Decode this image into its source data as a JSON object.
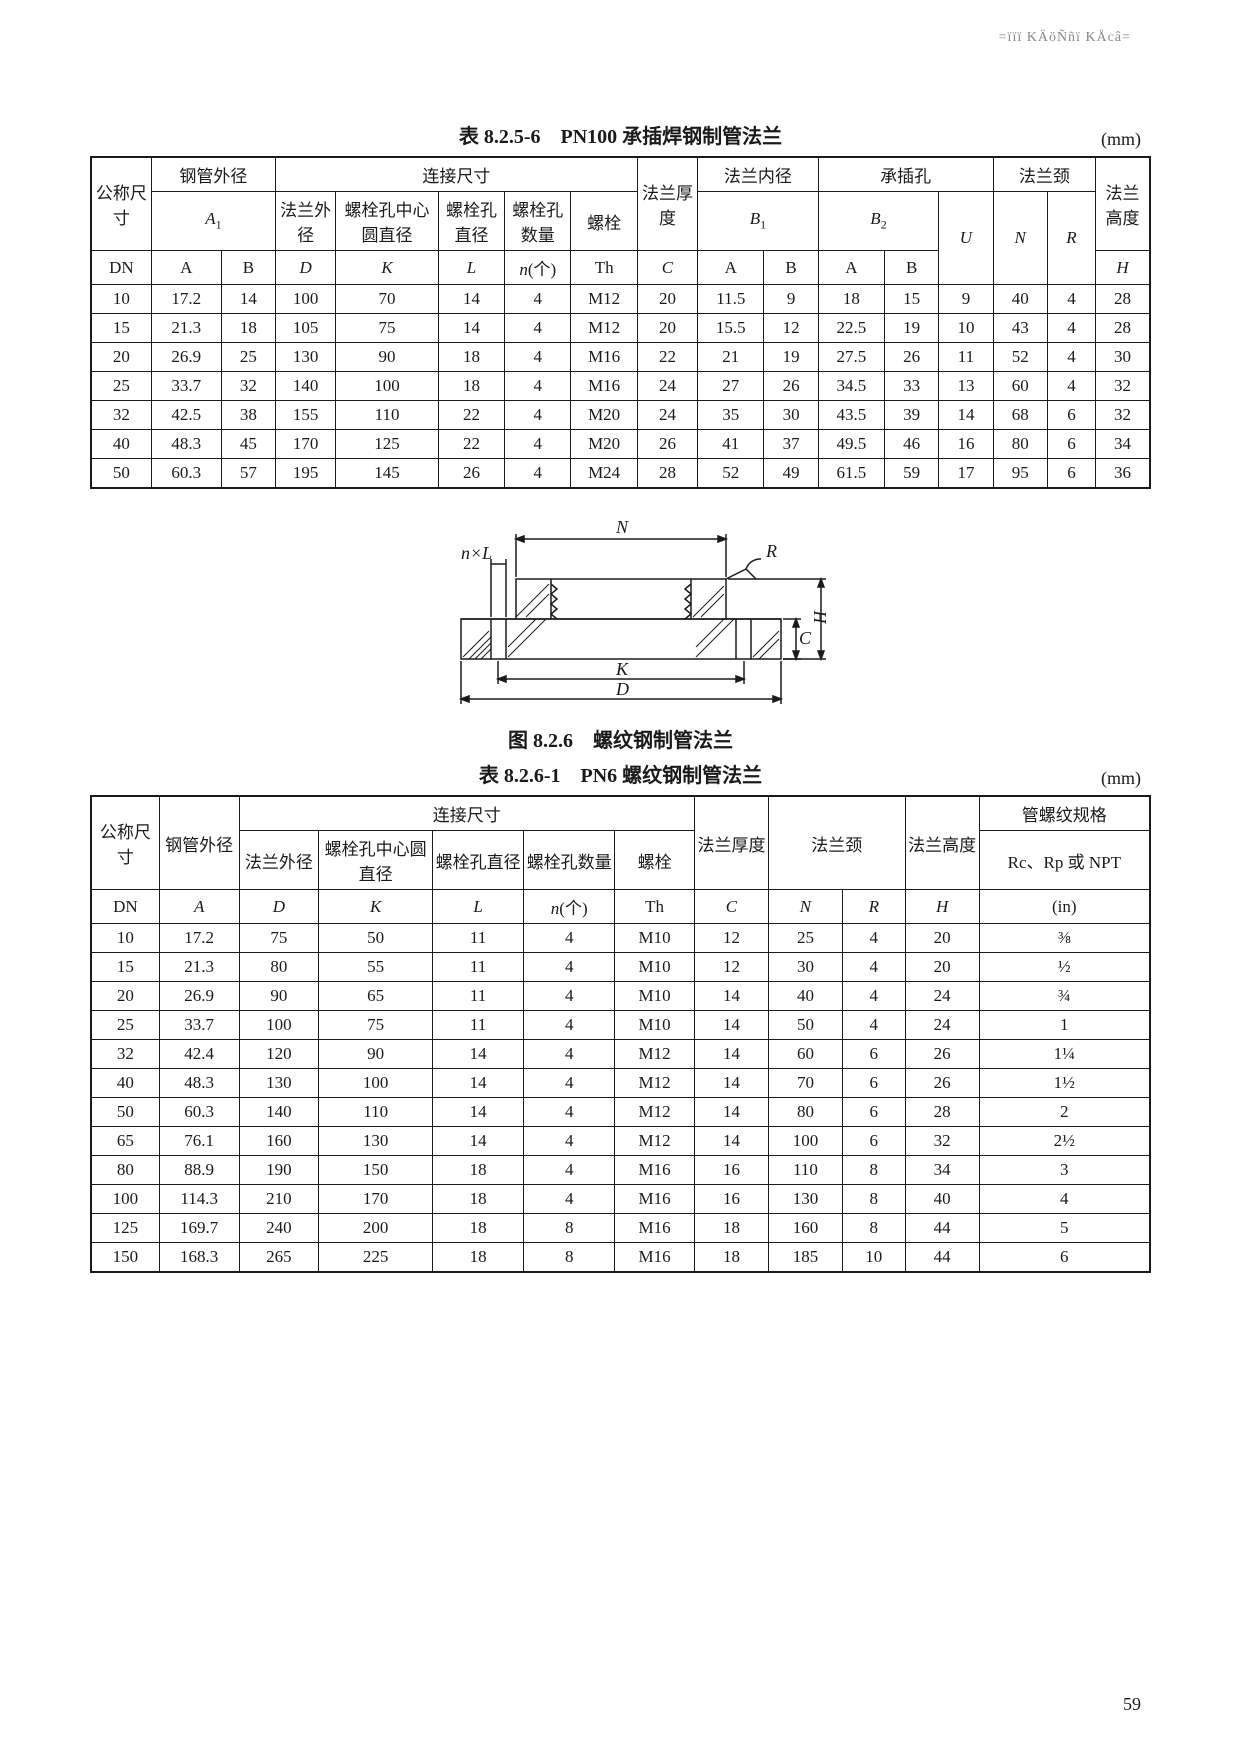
{
  "header_watermark": "=ïïï KÄöÑñï KÅcâ=",
  "table1": {
    "title": "表 8.2.5-6　PN100 承插焊钢制管法兰",
    "unit": "(mm)",
    "headers": {
      "g1": "公称尺寸",
      "g2": "钢管外径",
      "g2s": "A₁",
      "g3": "连接尺寸",
      "g4": "法兰厚度",
      "g5": "法兰内径",
      "g5s": "B₁",
      "g6": "承插孔",
      "g6s": "B₂",
      "g7": "法兰颈",
      "g8": "法兰高度",
      "c_dn": "DN",
      "c_a": "A",
      "c_b": "B",
      "c3a": "法兰外径",
      "c3a2": "D",
      "c3b": "螺栓孔中心圆直径",
      "c3b2": "K",
      "c3c": "螺栓孔直径",
      "c3c2": "L",
      "c3d": "螺栓孔数量",
      "c3d2": "n(个)",
      "c3e": "螺栓",
      "c3e2": "Th",
      "c4": "C",
      "c6u": "U",
      "c7n": "N",
      "c7r": "R",
      "c8h": "H"
    },
    "rows": [
      [
        "10",
        "17.2",
        "14",
        "100",
        "70",
        "14",
        "4",
        "M12",
        "20",
        "11.5",
        "9",
        "18",
        "15",
        "9",
        "40",
        "4",
        "28"
      ],
      [
        "15",
        "21.3",
        "18",
        "105",
        "75",
        "14",
        "4",
        "M12",
        "20",
        "15.5",
        "12",
        "22.5",
        "19",
        "10",
        "43",
        "4",
        "28"
      ],
      [
        "20",
        "26.9",
        "25",
        "130",
        "90",
        "18",
        "4",
        "M16",
        "22",
        "21",
        "19",
        "27.5",
        "26",
        "11",
        "52",
        "4",
        "30"
      ],
      [
        "25",
        "33.7",
        "32",
        "140",
        "100",
        "18",
        "4",
        "M16",
        "24",
        "27",
        "26",
        "34.5",
        "33",
        "13",
        "60",
        "4",
        "32"
      ],
      [
        "32",
        "42.5",
        "38",
        "155",
        "110",
        "22",
        "4",
        "M20",
        "24",
        "35",
        "30",
        "43.5",
        "39",
        "14",
        "68",
        "6",
        "32"
      ],
      [
        "40",
        "48.3",
        "45",
        "170",
        "125",
        "22",
        "4",
        "M20",
        "26",
        "41",
        "37",
        "49.5",
        "46",
        "16",
        "80",
        "6",
        "34"
      ],
      [
        "50",
        "60.3",
        "57",
        "195",
        "145",
        "26",
        "4",
        "M24",
        "28",
        "52",
        "49",
        "61.5",
        "59",
        "17",
        "95",
        "6",
        "36"
      ]
    ]
  },
  "figure": {
    "caption": "图 8.2.6　螺纹钢制管法兰",
    "labels": {
      "N": "N",
      "R": "R",
      "nL": "n×L",
      "C": "C",
      "H": "H",
      "K": "K",
      "D": "D"
    },
    "colors": {
      "stroke": "#1a1a1a",
      "hatch": "#1a1a1a",
      "bg": "#ffffff"
    }
  },
  "table2": {
    "title": "表 8.2.6-1　PN6 螺纹钢制管法兰",
    "unit": "(mm)",
    "headers": {
      "g1": "公称尺寸",
      "g2": "钢管外径",
      "g3": "连接尺寸",
      "g4": "法兰厚度",
      "g5": "法兰颈",
      "g6": "法兰高度",
      "g7": "管螺纹规格",
      "g7s": "Rc、Rp 或 NPT",
      "c_dn": "DN",
      "c_a": "A",
      "c3a": "法兰外径",
      "c3a2": "D",
      "c3b": "螺栓孔中心圆直径",
      "c3b2": "K",
      "c3c": "螺栓孔直径",
      "c3c2": "L",
      "c3d": "螺栓孔数量",
      "c3d2": "n(个)",
      "c3e": "螺栓",
      "c3e2": "Th",
      "c4": "C",
      "c5n": "N",
      "c5r": "R",
      "c6h": "H",
      "c7in": "(in)"
    },
    "rows": [
      [
        "10",
        "17.2",
        "75",
        "50",
        "11",
        "4",
        "M10",
        "12",
        "25",
        "4",
        "20",
        "⅜"
      ],
      [
        "15",
        "21.3",
        "80",
        "55",
        "11",
        "4",
        "M10",
        "12",
        "30",
        "4",
        "20",
        "½"
      ],
      [
        "20",
        "26.9",
        "90",
        "65",
        "11",
        "4",
        "M10",
        "14",
        "40",
        "4",
        "24",
        "¾"
      ],
      [
        "25",
        "33.7",
        "100",
        "75",
        "11",
        "4",
        "M10",
        "14",
        "50",
        "4",
        "24",
        "1"
      ],
      [
        "32",
        "42.4",
        "120",
        "90",
        "14",
        "4",
        "M12",
        "14",
        "60",
        "6",
        "26",
        "1¼"
      ],
      [
        "40",
        "48.3",
        "130",
        "100",
        "14",
        "4",
        "M12",
        "14",
        "70",
        "6",
        "26",
        "1½"
      ],
      [
        "50",
        "60.3",
        "140",
        "110",
        "14",
        "4",
        "M12",
        "14",
        "80",
        "6",
        "28",
        "2"
      ],
      [
        "65",
        "76.1",
        "160",
        "130",
        "14",
        "4",
        "M12",
        "14",
        "100",
        "6",
        "32",
        "2½"
      ],
      [
        "80",
        "88.9",
        "190",
        "150",
        "18",
        "4",
        "M16",
        "16",
        "110",
        "8",
        "34",
        "3"
      ],
      [
        "100",
        "114.3",
        "210",
        "170",
        "18",
        "4",
        "M16",
        "16",
        "130",
        "8",
        "40",
        "4"
      ],
      [
        "125",
        "169.7",
        "240",
        "200",
        "18",
        "8",
        "M16",
        "18",
        "160",
        "8",
        "44",
        "5"
      ],
      [
        "150",
        "168.3",
        "265",
        "225",
        "18",
        "8",
        "M16",
        "18",
        "185",
        "10",
        "44",
        "6"
      ]
    ]
  },
  "page_number": "59"
}
